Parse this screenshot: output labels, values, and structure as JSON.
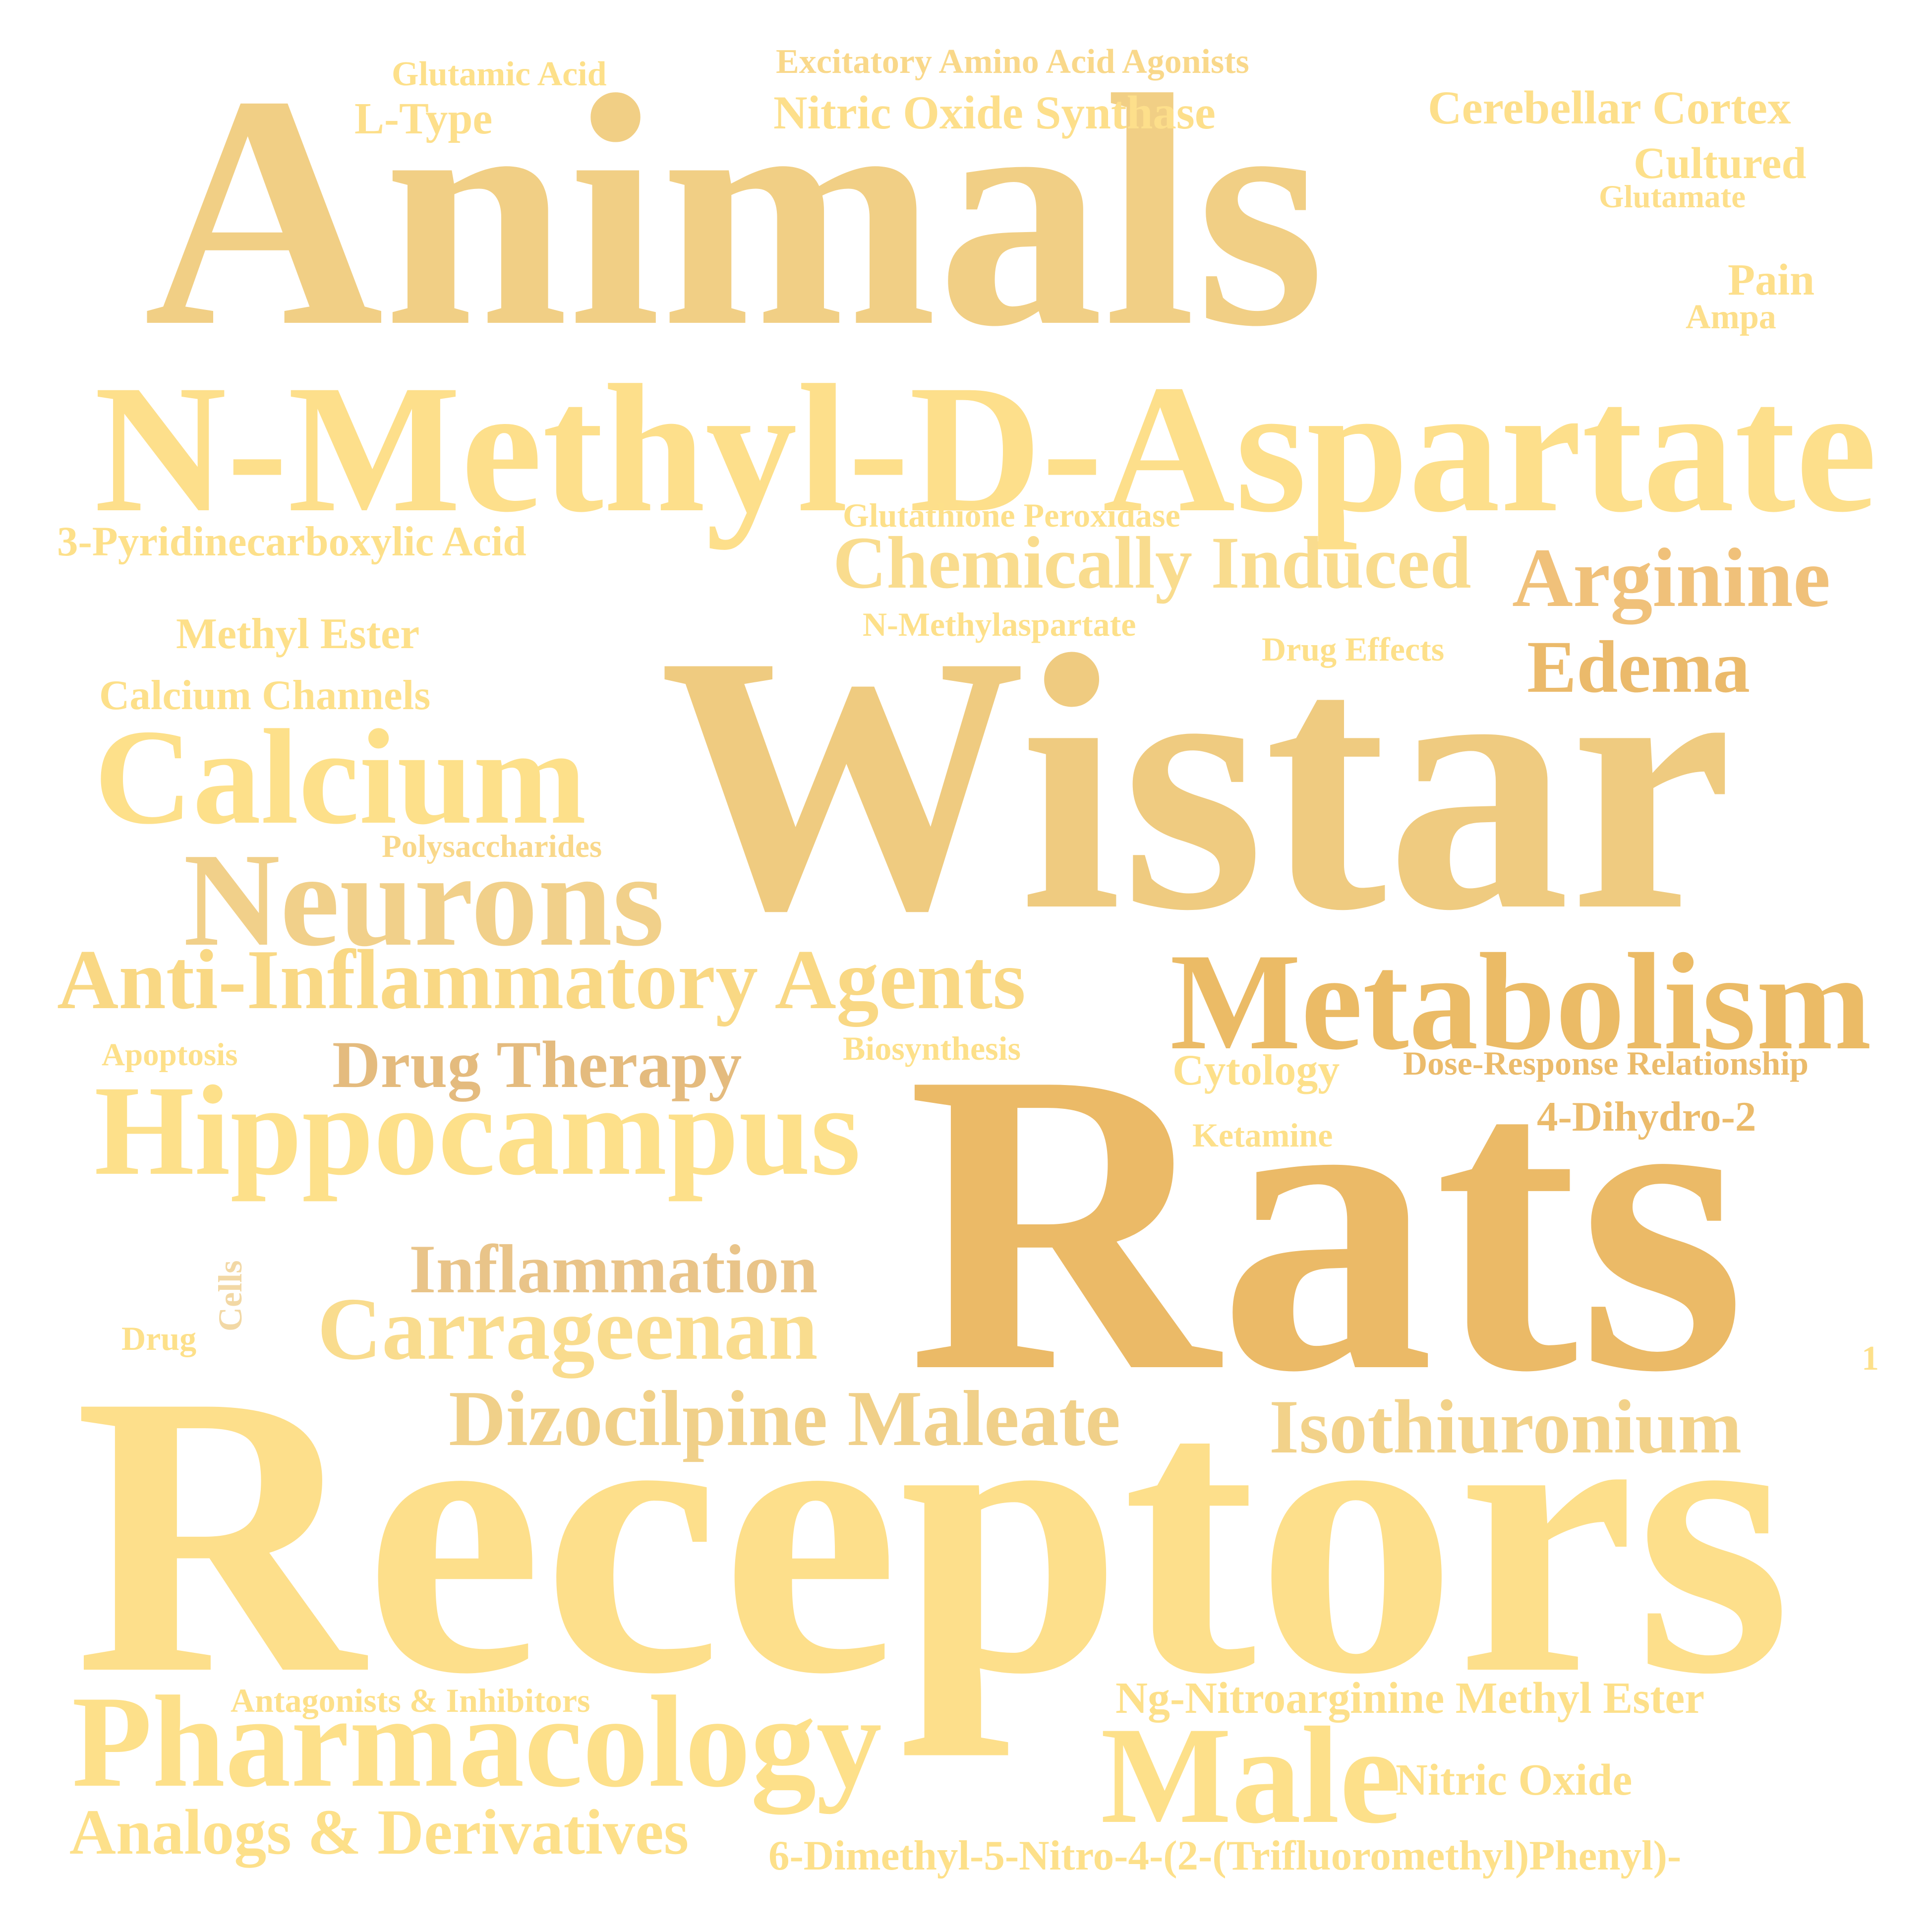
{
  "words": [
    {
      "text": "Animals",
      "color": "#f1cf85"
    },
    {
      "text": "Wistar",
      "color": "#efcb80"
    },
    {
      "text": "Rats",
      "color": "#ebba67"
    },
    {
      "text": "Receptors",
      "color": "#fddf8b"
    },
    {
      "text": "N-Methyl-D-Aspartate",
      "color": "#fddf8b"
    },
    {
      "text": "Metabolism",
      "color": "#ebbb66"
    },
    {
      "text": "Pharmacology",
      "color": "#fde08a"
    },
    {
      "text": "Hippocampus",
      "color": "#fde08a"
    },
    {
      "text": "Calcium",
      "color": "#fde08a"
    },
    {
      "text": "Neurons",
      "color": "#f1d08a"
    },
    {
      "text": "Anti-Inflammatory Agents",
      "color": "#f9d884"
    },
    {
      "text": "Male",
      "color": "#fde08a"
    },
    {
      "text": "Chemically Induced",
      "color": "#f9dc8e"
    },
    {
      "text": "Arginine",
      "color": "#f0c17a"
    },
    {
      "text": "Edema",
      "color": "#ebba6b"
    },
    {
      "text": "Dizocilpine Maleate",
      "color": "#f0d089"
    },
    {
      "text": "Carrageenan",
      "color": "#f9dc8e"
    },
    {
      "text": "Isothiuronium",
      "color": "#f2d28a"
    },
    {
      "text": "Inflammation",
      "color": "#e9c489"
    },
    {
      "text": "Drug Therapy",
      "color": "#e4bb7e"
    },
    {
      "text": "Analogs & Derivatives",
      "color": "#fde08a"
    },
    {
      "text": "Nitric Oxide Synthase",
      "color": "#fddf8b"
    },
    {
      "text": "Cerebellar Cortex",
      "color": "#fddf8b"
    },
    {
      "text": "Excitatory Amino Acid Agonists",
      "color": "#f9d88a"
    },
    {
      "text": "Glutamic Acid",
      "color": "#fde08a"
    },
    {
      "text": "L-Type",
      "color": "#fddf8b"
    },
    {
      "text": "Cultured",
      "color": "#fde08a"
    },
    {
      "text": "Glutamate",
      "color": "#fddf8b"
    },
    {
      "text": "Pain",
      "color": "#fddf8b"
    },
    {
      "text": "Ampa",
      "color": "#fddf8b"
    },
    {
      "text": "3-Pyridinecarboxylic Acid",
      "color": "#fde08a"
    },
    {
      "text": "Glutathione Peroxidase",
      "color": "#fde08a"
    },
    {
      "text": "N-Methylaspartate",
      "color": "#fde08a"
    },
    {
      "text": "Drug Effects",
      "color": "#fde08a"
    },
    {
      "text": "Methyl Ester",
      "color": "#fde08a"
    },
    {
      "text": "Calcium Channels",
      "color": "#fde08a"
    },
    {
      "text": "Polysaccharides",
      "color": "#f9d88a"
    },
    {
      "text": "Apoptosis",
      "color": "#fde08a"
    },
    {
      "text": "Biosynthesis",
      "color": "#fde08a"
    },
    {
      "text": "Cytology",
      "color": "#fde08a"
    },
    {
      "text": "Dose-Response Relationship",
      "color": "#ebbb6b"
    },
    {
      "text": "4-Dihydro-2",
      "color": "#ebbb6b"
    },
    {
      "text": "Ketamine",
      "color": "#fde08a"
    },
    {
      "text": "Cells",
      "color": "#f2d8a5"
    },
    {
      "text": "Drug",
      "color": "#fde08a"
    },
    {
      "text": "1",
      "color": "#fde08a"
    },
    {
      "text": "Antagonists & Inhibitors",
      "color": "#fde08a"
    },
    {
      "text": "Ng-Nitroarginine Methyl Ester",
      "color": "#fde08a"
    },
    {
      "text": "Nitric Oxide",
      "color": "#fde08a"
    },
    {
      "text": "6-Dimethyl-5-Nitro-4-(2-(Trifluoromethyl)Phenyl)-",
      "color": "#fde08a"
    }
  ]
}
